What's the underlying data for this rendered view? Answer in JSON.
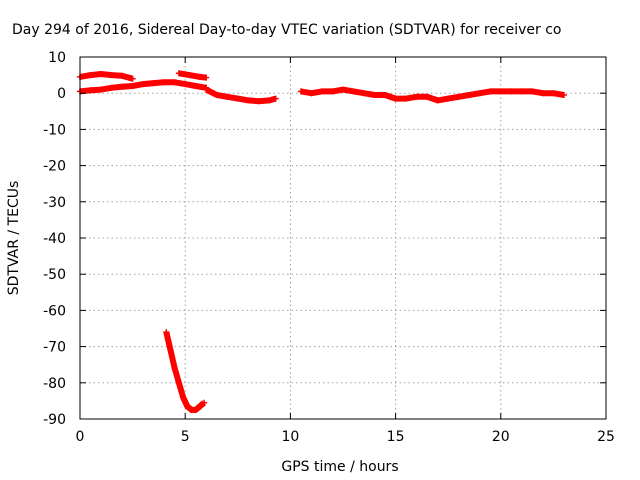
{
  "chart_data": {
    "type": "scatter",
    "title": "Day 294 of 2016, Sidereal Day-to-day VTEC variation (SDTVAR) for receiver co",
    "xlabel": "GPS time / hours",
    "ylabel": "SDTVAR / TECUs",
    "xlim": [
      0,
      25
    ],
    "ylim": [
      -90,
      10
    ],
    "xticks": [
      "0",
      "5",
      "10",
      "15",
      "20",
      "25"
    ],
    "yticks": [
      "10",
      "0",
      "-10",
      "-20",
      "-30",
      "-40",
      "-50",
      "-60",
      "-70",
      "-80",
      "-90"
    ],
    "grid": true,
    "legend": "none",
    "series_color": "#ff0000",
    "segments": [
      {
        "x": [
          0.0,
          0.5,
          1.0,
          1.5,
          2.0,
          2.5,
          3.0,
          3.5,
          4.0,
          4.5,
          5.0,
          5.5,
          6.0
        ],
        "y": [
          0.5,
          0.8,
          1.0,
          1.5,
          1.8,
          2.0,
          2.5,
          2.8,
          3.0,
          3.0,
          2.5,
          2.0,
          1.5
        ]
      },
      {
        "x": [
          0.0,
          0.5,
          1.0,
          1.5,
          2.0,
          2.5
        ],
        "y": [
          4.5,
          5.0,
          5.3,
          5.0,
          4.8,
          4.0
        ]
      },
      {
        "x": [
          4.7,
          5.2,
          5.7,
          6.0
        ],
        "y": [
          5.5,
          5.0,
          4.5,
          4.3
        ]
      },
      {
        "x": [
          6.0,
          6.5,
          7.0,
          7.5,
          8.0,
          8.5,
          9.0,
          9.3
        ],
        "y": [
          1.0,
          -0.5,
          -1.0,
          -1.5,
          -2.0,
          -2.2,
          -2.0,
          -1.5
        ]
      },
      {
        "x": [
          10.5,
          11.0,
          11.5,
          12.0,
          12.5,
          13.0,
          13.5,
          14.0,
          14.5,
          15.0,
          15.5,
          16.0,
          16.5,
          17.0,
          17.5,
          18.0,
          18.5,
          19.0,
          19.5,
          20.0,
          20.5,
          21.0,
          21.5,
          22.0,
          22.5,
          23.0
        ],
        "y": [
          0.5,
          0.0,
          0.5,
          0.5,
          1.0,
          0.5,
          0.0,
          -0.5,
          -0.5,
          -1.5,
          -1.5,
          -1.0,
          -1.0,
          -2.0,
          -1.5,
          -1.0,
          -0.5,
          0.0,
          0.5,
          0.5,
          0.5,
          0.5,
          0.5,
          0.0,
          0.0,
          -0.5
        ]
      },
      {
        "x": [
          4.1,
          4.3,
          4.5,
          4.7,
          4.9,
          5.1,
          5.3,
          5.5,
          5.7,
          5.9
        ],
        "y": [
          -66.0,
          -71.0,
          -76.0,
          -80.0,
          -84.0,
          -86.5,
          -87.5,
          -87.5,
          -86.5,
          -85.5
        ]
      }
    ]
  }
}
